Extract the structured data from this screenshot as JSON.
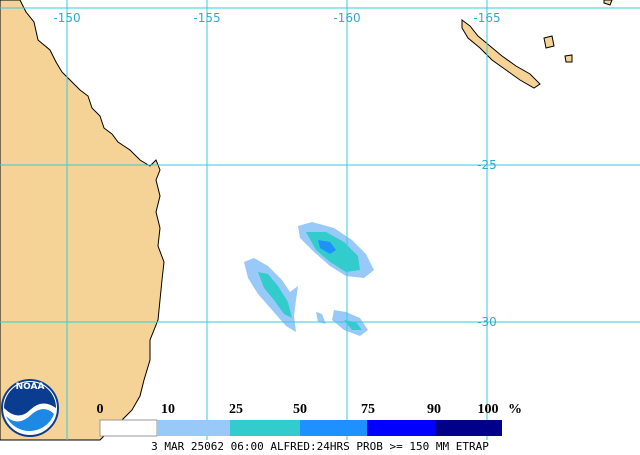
{
  "map": {
    "lon_labels": [
      -150,
      -155,
      -160,
      -165
    ],
    "lat_labels": [
      -25,
      -30
    ]
  },
  "legend": {
    "labels": [
      0,
      10,
      25,
      50,
      75,
      90,
      100
    ],
    "unit": "%",
    "colors": [
      "#ffffff",
      "#99c9f8",
      "#33cccc",
      "#1e90ff",
      "#0000ff",
      "#00008b"
    ]
  },
  "logo": "NOAA",
  "caption": "3 MAR 25062 06:00 ALFRED:24HRS PROB >= 150 MM ETRAP"
}
